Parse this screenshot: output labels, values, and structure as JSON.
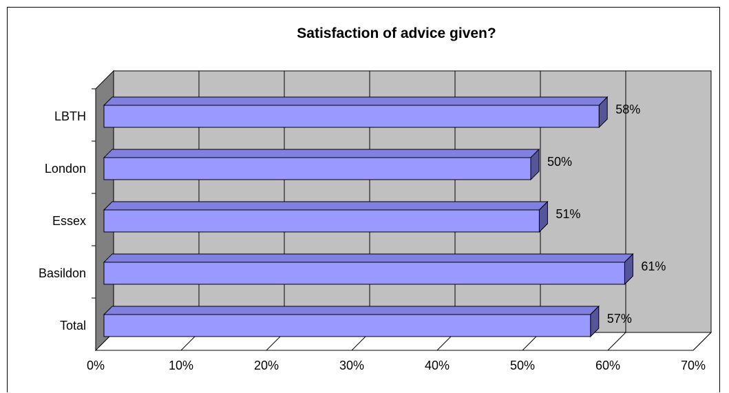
{
  "chart_data": {
    "type": "bar",
    "orientation": "horizontal",
    "title": "Satisfaction of advice given?",
    "xlabel": "",
    "ylabel": "",
    "categories": [
      "LBTH",
      "London",
      "Essex",
      "Basildon",
      "Total"
    ],
    "values": [
      58,
      50,
      51,
      61,
      57
    ],
    "data_labels": [
      "58%",
      "50%",
      "51%",
      "61%",
      "57%"
    ],
    "xlim": [
      0,
      70
    ],
    "x_ticks": [
      0,
      10,
      20,
      30,
      40,
      50,
      60,
      70
    ],
    "x_tick_labels": [
      "0%",
      "10%",
      "20%",
      "30%",
      "40%",
      "50%",
      "60%",
      "70%"
    ],
    "grid": true,
    "legend": "none",
    "style": "3d",
    "colors": {
      "bar_front": "#9999ff",
      "bar_top": "#8080e0",
      "bar_side": "#55559a",
      "back_wall": "#c0c0c0",
      "side_wall": "#808080",
      "floor": "#ffffff"
    }
  }
}
